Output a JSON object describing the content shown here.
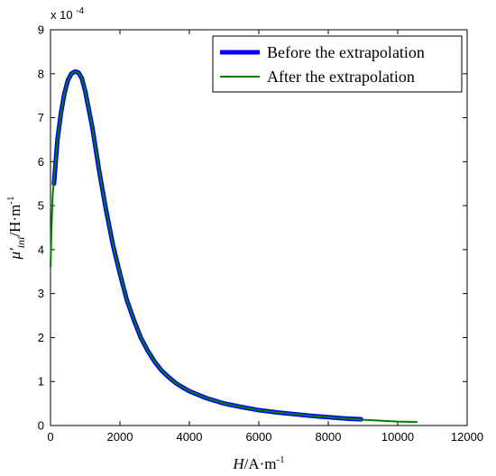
{
  "chart_data": {
    "type": "line",
    "xlim": [
      0,
      12000
    ],
    "ylim": [
      0,
      9
    ],
    "x_ticks": [
      0,
      2000,
      4000,
      6000,
      8000,
      10000,
      12000
    ],
    "y_ticks": [
      0,
      1,
      2,
      3,
      4,
      5,
      6,
      7,
      8,
      9
    ],
    "y_scale_label": "x 10^-4",
    "xlabel": "H/A·m^-1",
    "ylabel": "μ'ini/H·m^-1",
    "legend_position": "top-right",
    "grid": false,
    "series": [
      {
        "name": "Before the extrapolation",
        "color": "#0000ff",
        "x": [
          100,
          150,
          200,
          300,
          400,
          500,
          600,
          700,
          800,
          900,
          1000,
          1200,
          1400,
          1600,
          1800,
          2000,
          2200,
          2400,
          2600,
          2800,
          3000,
          3200,
          3400,
          3600,
          3800,
          4000,
          4500,
          5000,
          5500,
          6000,
          6500,
          7000,
          7500,
          8000,
          8500,
          8950
        ],
        "y": [
          5.5,
          6.0,
          6.5,
          7.1,
          7.55,
          7.85,
          8.0,
          8.05,
          8.03,
          7.9,
          7.6,
          6.8,
          5.8,
          4.9,
          4.1,
          3.45,
          2.85,
          2.4,
          2.0,
          1.7,
          1.45,
          1.25,
          1.1,
          0.97,
          0.87,
          0.78,
          0.62,
          0.5,
          0.42,
          0.35,
          0.3,
          0.26,
          0.22,
          0.19,
          0.16,
          0.14
        ]
      },
      {
        "name": "After the extrapolation",
        "color": "#008000",
        "x": [
          0,
          30,
          60,
          100,
          150,
          200,
          300,
          400,
          500,
          600,
          700,
          800,
          900,
          1000,
          1200,
          1400,
          1600,
          1800,
          2000,
          2200,
          2400,
          2600,
          2800,
          3000,
          3200,
          3400,
          3600,
          3800,
          4000,
          4500,
          5000,
          5500,
          6000,
          6500,
          7000,
          7500,
          8000,
          8500,
          9000,
          9500,
          10000,
          10550
        ],
        "y": [
          3.6,
          4.5,
          5.2,
          5.6,
          6.0,
          6.5,
          7.1,
          7.55,
          7.85,
          8.0,
          8.05,
          8.03,
          7.9,
          7.6,
          6.8,
          5.8,
          4.9,
          4.1,
          3.45,
          2.85,
          2.4,
          2.0,
          1.7,
          1.45,
          1.25,
          1.1,
          0.97,
          0.87,
          0.78,
          0.62,
          0.5,
          0.42,
          0.35,
          0.3,
          0.26,
          0.22,
          0.19,
          0.16,
          0.13,
          0.11,
          0.09,
          0.08
        ]
      }
    ]
  }
}
